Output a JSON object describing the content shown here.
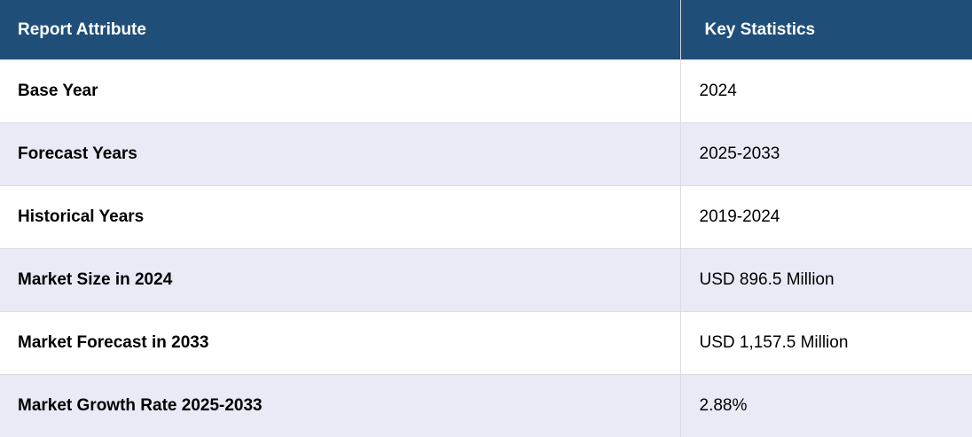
{
  "table": {
    "header": [
      "Report Attribute",
      "Key Statistics"
    ],
    "rows": [
      [
        "Base Year",
        "2024"
      ],
      [
        "Forecast Years",
        "2025-2033"
      ],
      [
        "Historical Years",
        "2019-2024"
      ],
      [
        "Market Size in 2024",
        "USD 896.5 Million"
      ],
      [
        "Market Forecast in 2033",
        "USD 1,157.5 Million"
      ],
      [
        "Market Growth Rate 2025-2033",
        "2.88%"
      ]
    ]
  }
}
